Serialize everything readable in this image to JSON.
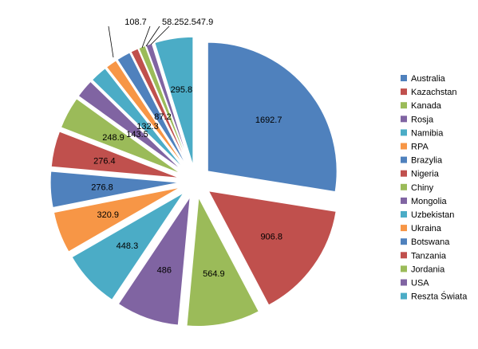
{
  "chart_data": {
    "type": "pie",
    "exploded": true,
    "categories": [
      "Australia",
      "Kazachstan",
      "Kanada",
      "Rosja",
      "Namibia",
      "RPA",
      "Brazylia",
      "Nigeria",
      "Chiny",
      "Mongolia",
      "Uzbekistan",
      "Ukraina",
      "Botswana",
      "Tanzania",
      "Jordania",
      "USA",
      "Reszta Świata"
    ],
    "values": [
      1692.7,
      906.8,
      564.9,
      486,
      448.3,
      320.9,
      276.8,
      276.4,
      248.9,
      143.5,
      132.3,
      87.2,
      108.7,
      58.2,
      52.5,
      47.9,
      295.8
    ],
    "data_labels": [
      "1692.7",
      "906.8",
      "564.9",
      "486",
      "448.3",
      "320.9",
      "276.8",
      "276.4",
      "248.9",
      "143.5",
      "132.3",
      "87.2",
      "108.7",
      "58.2",
      "52.5",
      "47.9",
      "295.8"
    ],
    "colors": [
      "#4F81BD",
      "#C0504D",
      "#9BBB59",
      "#8064A2",
      "#4BACC6",
      "#F79646",
      "#4F81BD",
      "#C0504D",
      "#9BBB59",
      "#8064A2",
      "#4BACC6",
      "#F79646",
      "#4F81BD",
      "#C0504D",
      "#9BBB59",
      "#8064A2",
      "#4BACC6"
    ],
    "legend_position": "right",
    "title": ""
  }
}
